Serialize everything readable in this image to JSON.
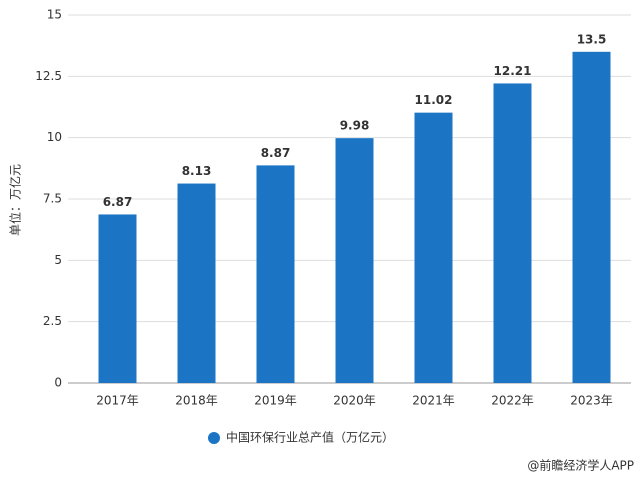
{
  "chart_data": {
    "type": "bar",
    "y_label": "单位：万亿元",
    "categories": [
      "2017年",
      "2018年",
      "2019年",
      "2020年",
      "2021年",
      "2022年",
      "2023年"
    ],
    "series": [
      {
        "name": "中国环保行业总产值（万亿元）",
        "color": "#1b75c4",
        "values": [
          6.87,
          8.13,
          8.87,
          9.98,
          11.02,
          12.21,
          13.5
        ]
      }
    ],
    "ylim": [
      0,
      15
    ],
    "yticks": [
      0,
      2.5,
      5,
      7.5,
      10,
      12.5,
      15
    ],
    "grid": true,
    "source": "@前瞻经济学人APP"
  }
}
